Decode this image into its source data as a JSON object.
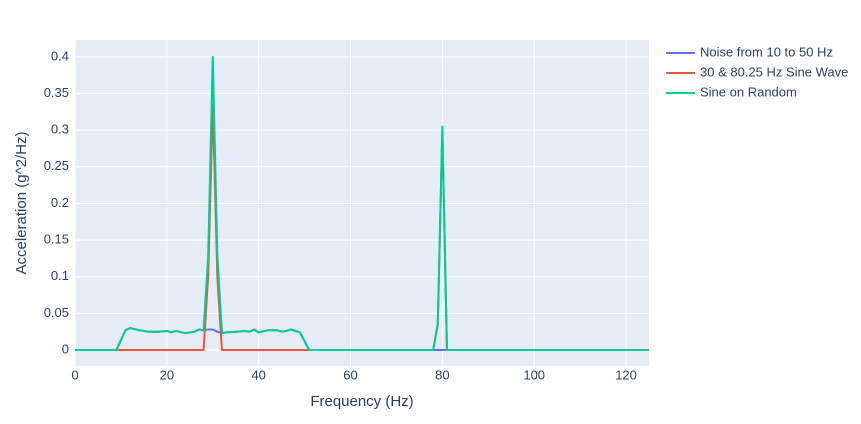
{
  "chart_data": {
    "type": "line",
    "x_label": "Frequency (Hz)",
    "y_label": "Acceleration (g^2/Hz)",
    "x": [
      0,
      9,
      11,
      12,
      14,
      16,
      18,
      20,
      21,
      22,
      24,
      26,
      27,
      28,
      29,
      30,
      31,
      32,
      33,
      35,
      37,
      38,
      39,
      40,
      42,
      44,
      45,
      46,
      47,
      49,
      51,
      60,
      78,
      79,
      80,
      81,
      82,
      100,
      125
    ],
    "series": [
      {
        "name": "Noise from 10 to 50 Hz",
        "color": "#636efa",
        "values": [
          0,
          0,
          0.027,
          0.03,
          0.027,
          0.025,
          0.025,
          0.026,
          0.024,
          0.026,
          0.023,
          0.025,
          0.028,
          0.027,
          0.028,
          0.028,
          0.025,
          0.023,
          0.024,
          0.025,
          0.026,
          0.025,
          0.028,
          0.024,
          0.027,
          0.027,
          0.025,
          0.026,
          0.028,
          0.024,
          0,
          0,
          0,
          0,
          0,
          0,
          0,
          0,
          0
        ]
      },
      {
        "name": "30 & 80.25 Hz Sine Wave",
        "color": "#ef553b",
        "values": [
          0,
          0,
          0,
          0,
          0,
          0,
          0,
          0,
          0,
          0,
          0,
          0,
          0,
          0,
          0.1,
          0.335,
          0.1,
          0,
          0,
          0,
          0,
          0,
          0,
          0,
          0,
          0,
          0,
          0,
          0,
          0,
          0,
          0,
          0,
          0.035,
          0.3,
          0,
          0,
          0,
          0
        ]
      },
      {
        "name": "Sine on Random",
        "color": "#00cc96",
        "values": [
          0,
          0,
          0.027,
          0.03,
          0.027,
          0.025,
          0.025,
          0.026,
          0.024,
          0.026,
          0.023,
          0.025,
          0.028,
          0.027,
          0.128,
          0.4,
          0.13,
          0.023,
          0.024,
          0.025,
          0.026,
          0.025,
          0.028,
          0.024,
          0.027,
          0.027,
          0.025,
          0.026,
          0.028,
          0.024,
          0,
          0,
          0,
          0.035,
          0.305,
          0,
          0,
          0,
          0
        ]
      }
    ],
    "xlim": [
      0,
      125
    ],
    "ylim": [
      -0.0218,
      0.423
    ],
    "xticks": [
      0,
      20,
      40,
      60,
      80,
      100,
      120
    ],
    "yticks": [
      0,
      0.05,
      0.1,
      0.15,
      0.2,
      0.25,
      0.3,
      0.35,
      0.4
    ],
    "grid": true,
    "legend": "outside-right"
  }
}
